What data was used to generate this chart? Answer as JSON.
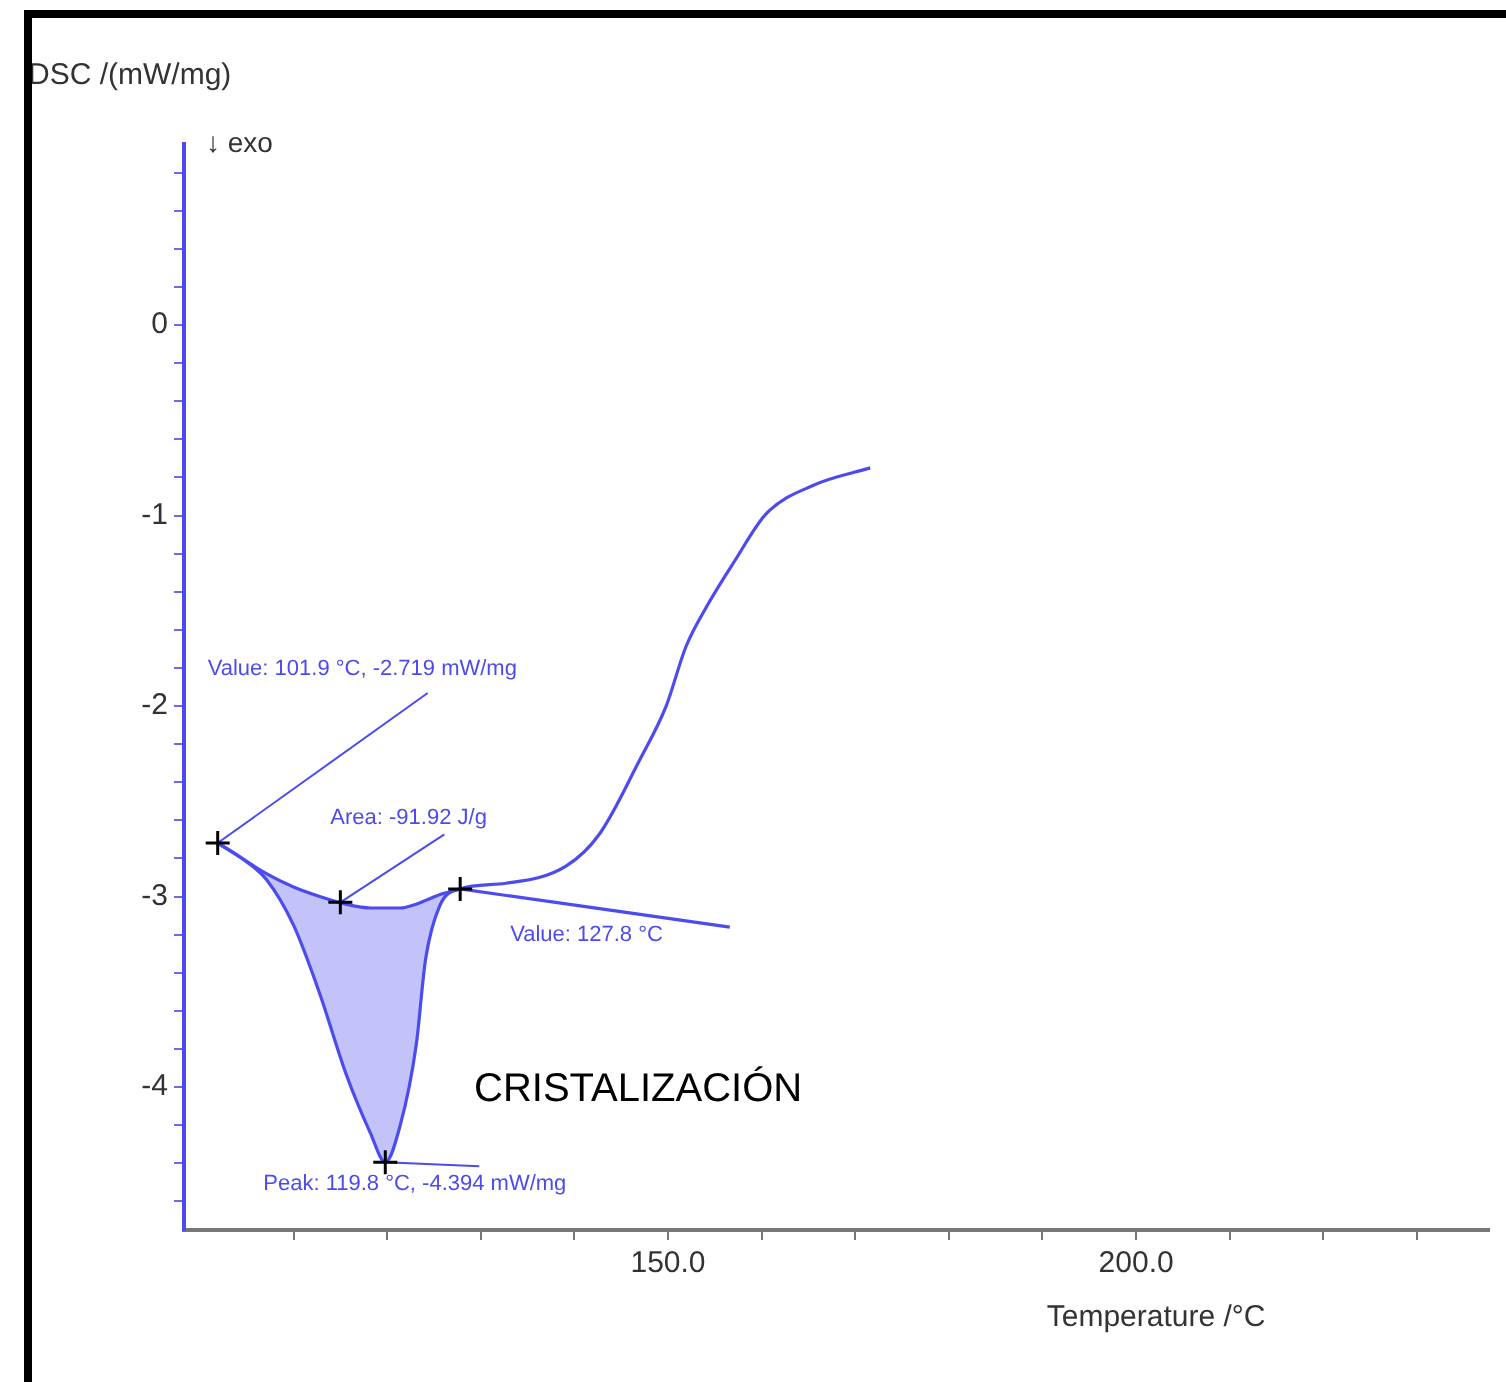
{
  "chart_data": {
    "type": "line",
    "ylabel": "DSC /(mW/mg)",
    "xlabel": "Temperature /°C",
    "xlim": [
      98.3,
      237.8
    ],
    "ylim": [
      -4.75,
      0.95
    ],
    "xticks": [
      {
        "value": 110,
        "label": null
      },
      {
        "value": 120,
        "label": null
      },
      {
        "value": 130,
        "label": null
      },
      {
        "value": 140,
        "label": null
      },
      {
        "value": 150,
        "label": "150.0"
      },
      {
        "value": 160,
        "label": null
      },
      {
        "value": 170,
        "label": null
      },
      {
        "value": 180,
        "label": null
      },
      {
        "value": 190,
        "label": null
      },
      {
        "value": 200,
        "label": "200.0"
      },
      {
        "value": 210,
        "label": null
      },
      {
        "value": 220,
        "label": null
      },
      {
        "value": 230,
        "label": null
      }
    ],
    "yticks": [
      {
        "value": 0.8,
        "label": null
      },
      {
        "value": 0.6,
        "label": null
      },
      {
        "value": 0.4,
        "label": null
      },
      {
        "value": 0.2,
        "label": null
      },
      0,
      {
        "value": -0.2,
        "label": null
      },
      {
        "value": -0.4,
        "label": null
      },
      {
        "value": -0.6,
        "label": null
      },
      {
        "value": -0.8,
        "label": null
      },
      -1,
      {
        "value": -1.2,
        "label": null
      },
      {
        "value": -1.4,
        "label": null
      },
      {
        "value": -1.6,
        "label": null
      },
      {
        "value": -1.8,
        "label": null
      },
      -2,
      {
        "value": -2.2,
        "label": null
      },
      {
        "value": -2.4,
        "label": null
      },
      {
        "value": -2.6,
        "label": null
      },
      {
        "value": -2.8,
        "label": null
      },
      -3,
      {
        "value": -3.2,
        "label": null
      },
      {
        "value": -3.4,
        "label": null
      },
      {
        "value": -3.6,
        "label": null
      },
      {
        "value": -3.8,
        "label": null
      },
      -4,
      {
        "value": -4.2,
        "label": null
      },
      {
        "value": -4.4,
        "label": null
      },
      {
        "value": -4.6,
        "label": null
      }
    ],
    "grid": false,
    "series": [
      {
        "color": "#4b4bef",
        "x": [
          101.9,
          104.5,
          107.1,
          110.0,
          112.8,
          115.6,
          118.2,
          119.8,
          121.4,
          123.1,
          124.1,
          125.6,
          127.8,
          132.7,
          139.1,
          142.7,
          147.0,
          149.8,
          151.9,
          154.1,
          157.1,
          160.5,
          165.6,
          171.6
        ],
        "values": [
          -2.719,
          -2.8,
          -2.91,
          -3.15,
          -3.51,
          -3.93,
          -4.24,
          -4.394,
          -4.2,
          -3.78,
          -3.33,
          -3.05,
          -2.96,
          -2.93,
          -2.84,
          -2.67,
          -2.28,
          -2.0,
          -1.69,
          -1.48,
          -1.24,
          -0.99,
          -0.84,
          -0.75
        ]
      },
      {
        "color": "#4b4bef",
        "x": [
          101.9,
          104.5,
          107.1,
          110.0,
          112.8,
          115.6,
          118.2,
          119.8,
          121.4,
          123.1,
          124.1,
          125.6,
          127.8
        ],
        "values": [
          -2.719,
          -2.8,
          -2.88,
          -2.95,
          -3.0,
          -3.04,
          -3.06,
          -3.06,
          -3.06,
          -3.04,
          -3.02,
          -2.99,
          -2.96
        ],
        "upper": [
          -2.719,
          -2.8,
          -2.88,
          -2.95,
          -3.0,
          -3.04,
          -3.06,
          -3.06,
          -3.06,
          -3.04,
          -3.02,
          -2.99,
          -2.96
        ],
        "lower": [
          -2.719,
          -2.8,
          -2.91,
          -3.15,
          -3.51,
          -3.93,
          -4.24,
          -4.394,
          -4.2,
          -3.78,
          -3.33,
          -3.05,
          -2.96
        ]
      },
      {
        "color": "#4b4bef",
        "x": [
          127.8,
          156.6
        ],
        "values": [
          -2.96,
          -3.16
        ]
      }
    ],
    "annotations": [
      {
        "text": "Value: 101.9 °C, -2.719 mW/mg",
        "x": 101.9,
        "y": -2.719
      },
      {
        "text": "Area: -91.92 J/g",
        "x": 115,
        "y": -3.03
      },
      {
        "text": "Value: 127.8 °C",
        "x": 127.8,
        "y": -2.96
      },
      {
        "text": "Peak: 119.8 °C, -4.394 mW/mg",
        "x": 119.8,
        "y": -4.394
      },
      "CRISTALIZACIÓN",
      "↓ exo"
    ]
  }
}
